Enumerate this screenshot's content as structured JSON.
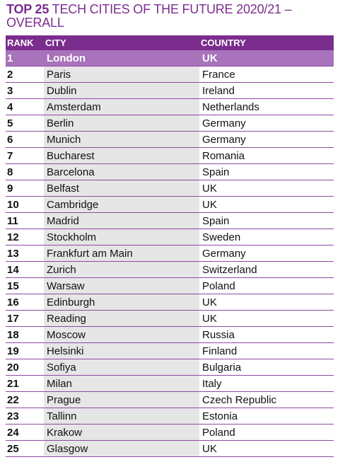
{
  "header": {
    "title_bold": "TOP 25",
    "title_rest": "TECH CITIES OF THE FUTURE 2020/21 – OVERALL"
  },
  "table": {
    "columns": [
      "RANK",
      "CITY",
      "COUNTRY"
    ],
    "rows": [
      [
        "1",
        "London",
        "UK"
      ],
      [
        "2",
        "Paris",
        "France"
      ],
      [
        "3",
        "Dublin",
        "Ireland"
      ],
      [
        "4",
        "Amsterdam",
        "Netherlands"
      ],
      [
        "5",
        "Berlin",
        "Germany"
      ],
      [
        "6",
        "Munich",
        "Germany"
      ],
      [
        "7",
        "Bucharest",
        "Romania"
      ],
      [
        "8",
        "Barcelona",
        "Spain"
      ],
      [
        "9",
        "Belfast",
        "UK"
      ],
      [
        "10",
        "Cambridge",
        "UK"
      ],
      [
        "11",
        "Madrid",
        "Spain"
      ],
      [
        "12",
        "Stockholm",
        "Sweden"
      ],
      [
        "13",
        "Frankfurt am Main",
        "Germany"
      ],
      [
        "14",
        "Zurich",
        "Switzerland"
      ],
      [
        "15",
        "Warsaw",
        "Poland"
      ],
      [
        "16",
        "Edinburgh",
        "UK"
      ],
      [
        "17",
        "Reading",
        "UK"
      ],
      [
        "18",
        "Moscow",
        "Russia"
      ],
      [
        "19",
        "Helsinki",
        "Finland"
      ],
      [
        "20",
        "Sofiya",
        "Bulgaria"
      ],
      [
        "21",
        "Milan",
        "Italy"
      ],
      [
        "22",
        "Prague",
        "Czech Republic"
      ],
      [
        "23",
        "Tallinn",
        "Estonia"
      ],
      [
        "24",
        "Krakow",
        "Poland"
      ],
      [
        "25",
        "Glasgow",
        "UK"
      ]
    ]
  }
}
